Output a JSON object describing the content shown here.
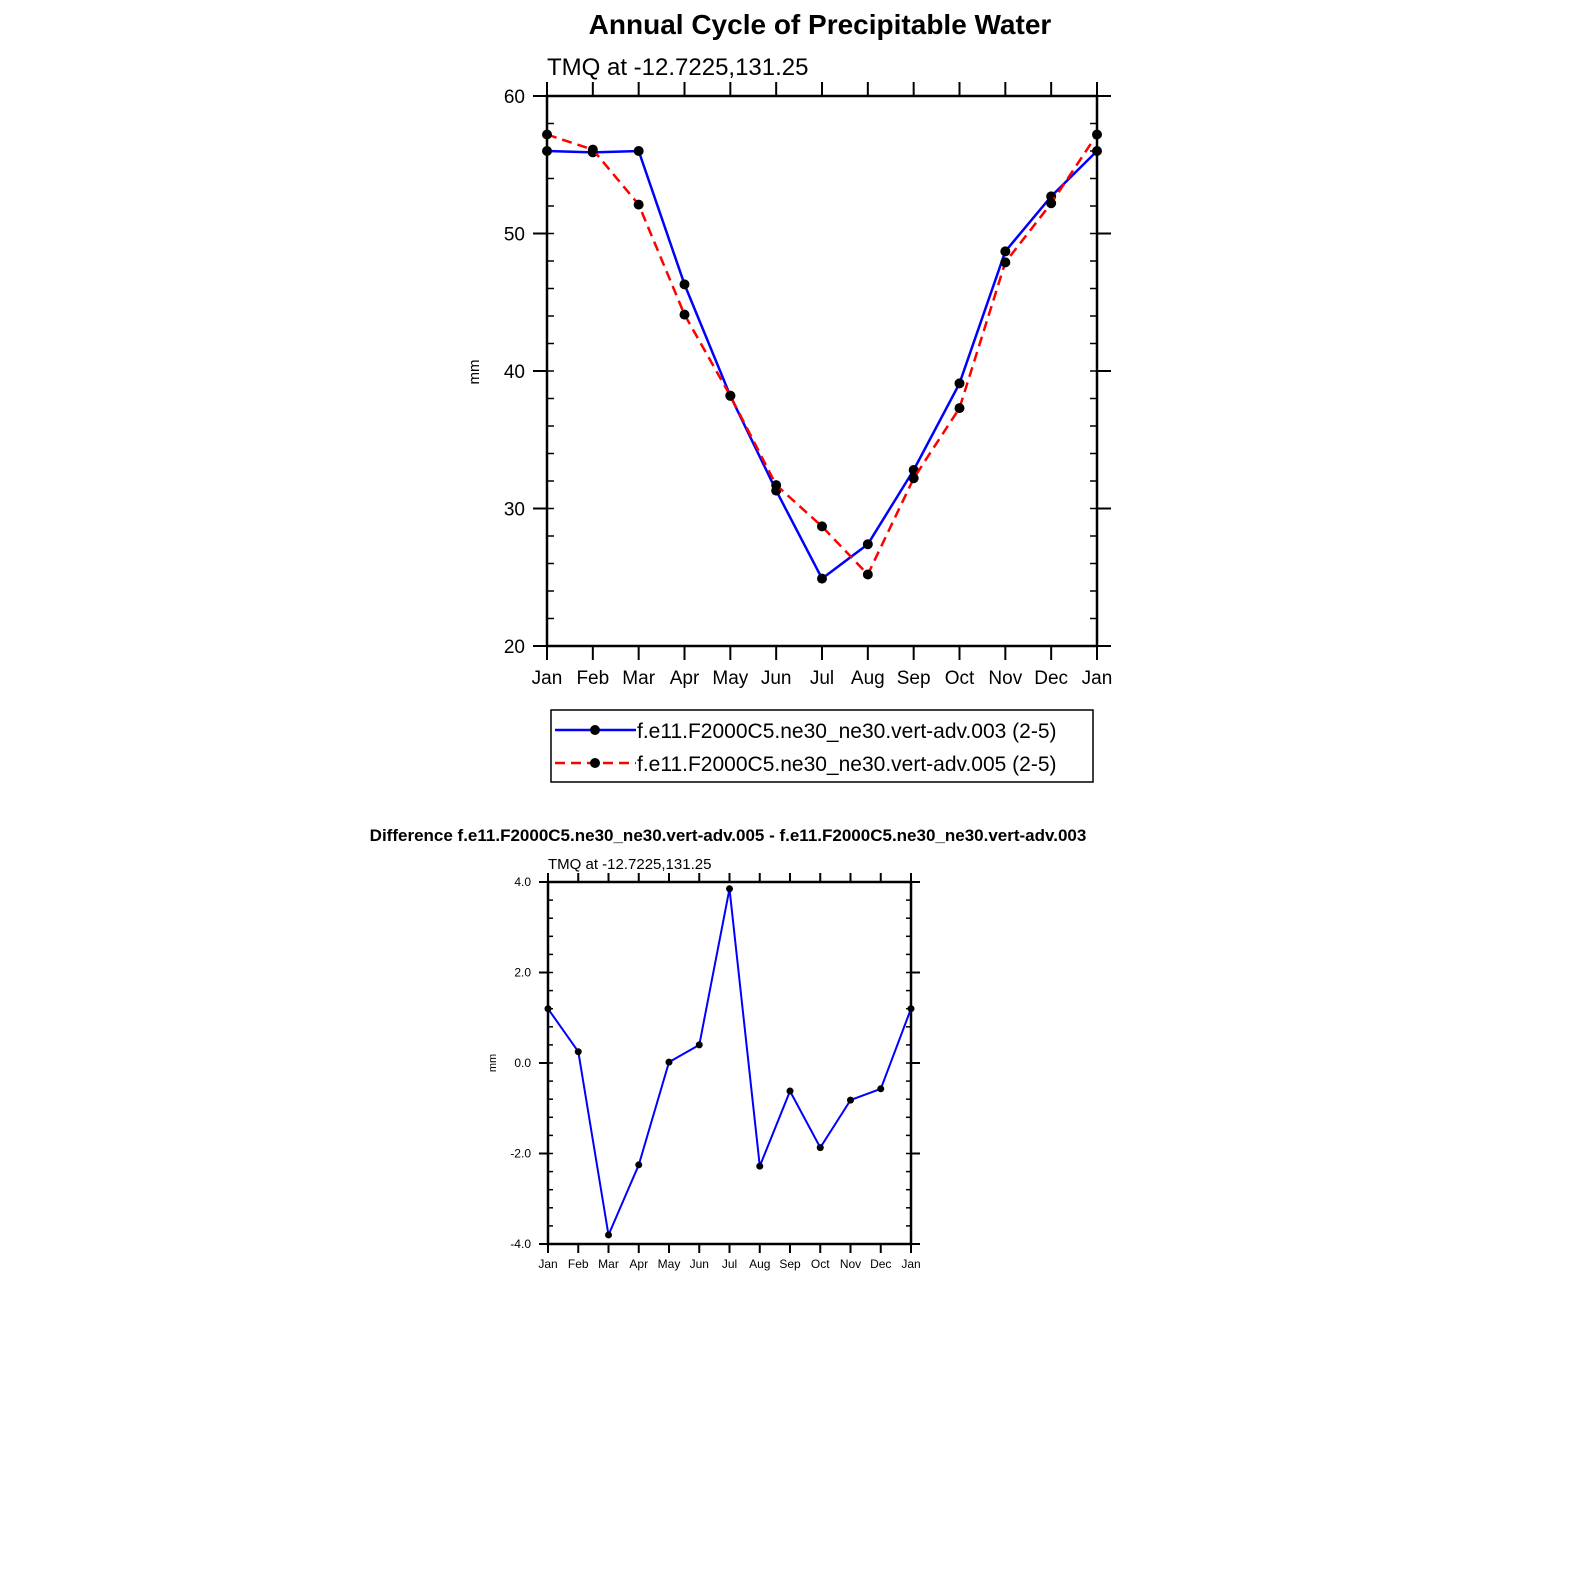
{
  "chart_data": [
    {
      "type": "line",
      "title": "Annual Cycle of Precipitable Water",
      "subtitle": "TMQ at -12.7225,131.25",
      "ylabel": "mm",
      "ylim": [
        20,
        60
      ],
      "yticks": [
        20,
        30,
        40,
        50,
        60
      ],
      "categories": [
        "Jan",
        "Feb",
        "Mar",
        "Apr",
        "May",
        "Jun",
        "Jul",
        "Aug",
        "Sep",
        "Oct",
        "Nov",
        "Dec",
        "Jan"
      ],
      "legend_position": "bottom",
      "series": [
        {
          "name": "f.e11.F2000C5.ne30_ne30.vert-adv.003 (2-5)",
          "color": "#0000ff",
          "dash": "solid",
          "values": [
            56.0,
            55.9,
            56.0,
            46.3,
            38.2,
            31.3,
            24.9,
            27.4,
            32.8,
            39.1,
            48.7,
            52.7,
            56.0
          ]
        },
        {
          "name": "f.e11.F2000C5.ne30_ne30.vert-adv.005 (2-5)",
          "color": "#ff0000",
          "dash": "dashed",
          "values": [
            57.2,
            56.1,
            52.1,
            44.1,
            38.2,
            31.7,
            28.7,
            25.2,
            32.2,
            37.3,
            47.9,
            52.2,
            57.2
          ]
        }
      ]
    },
    {
      "type": "line",
      "title": "Difference f.e11.F2000C5.ne30_ne30.vert-adv.005 - f.e11.F2000C5.ne30_ne30.vert-adv.003",
      "subtitle": "TMQ at -12.7225,131.25",
      "ylabel": "mm",
      "ylim": [
        -4.0,
        4.0
      ],
      "yticks": [
        "-4.0",
        "-2.0",
        "0.0",
        "2.0",
        "4.0"
      ],
      "categories": [
        "Jan",
        "Feb",
        "Mar",
        "Apr",
        "May",
        "Jun",
        "Jul",
        "Aug",
        "Sep",
        "Oct",
        "Nov",
        "Dec",
        "Jan"
      ],
      "series": [
        {
          "color": "#0000ff",
          "values": [
            1.2,
            0.25,
            -3.8,
            -2.25,
            0.02,
            0.4,
            3.85,
            -2.28,
            -0.62,
            -1.87,
            -0.82,
            -0.57,
            1.2
          ]
        }
      ]
    }
  ]
}
